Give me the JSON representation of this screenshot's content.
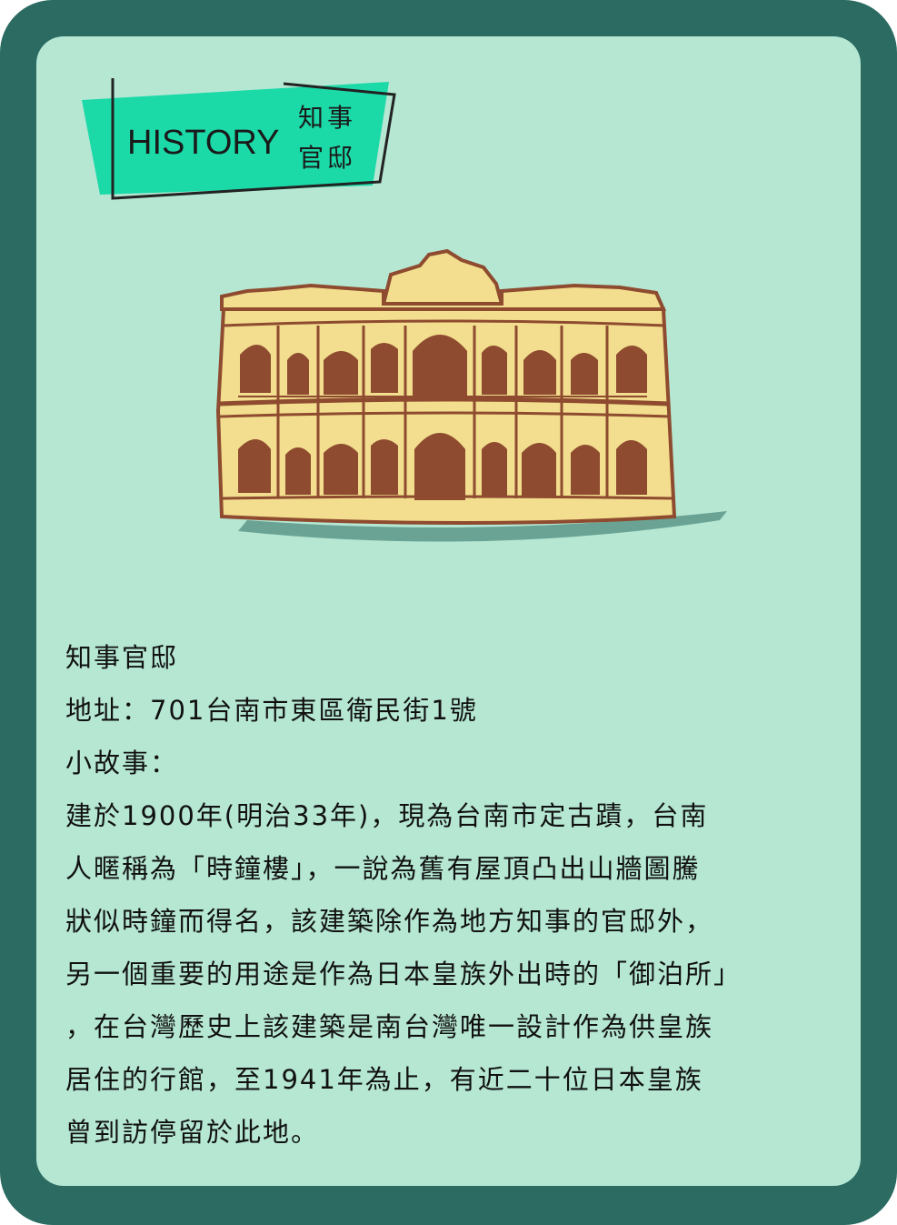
{
  "tag": {
    "english": "HISTORY",
    "chinese_line1": "知事",
    "chinese_line2": "官邸"
  },
  "illustration": {
    "icon": "colonial-building-illustration",
    "colors": {
      "facade": "#f2de8e",
      "arches": "#8e4b2f",
      "outline": "#8e4b2f",
      "shadow": "#2b6b61"
    }
  },
  "info": {
    "name": "知事官邸",
    "address": "地址：701台南市東區衛民街1號",
    "story_label": "小故事：",
    "story_lines": [
      "建於1900年(明治33年)，現為台南市定古蹟，台南",
      "人暱稱為「時鐘樓」，一說為舊有屋頂凸出山牆圖騰",
      "狀似時鐘而得名，該建築除作為地方知事的官邸外，",
      "另一個重要的用途是作為日本皇族外出時的「御泊所」",
      "，在台灣歷史上該建築是南台灣唯一設計作為供皇族",
      "居住的行館，至1941年為止，有近二十位日本皇族",
      "曾到訪停留於此地。"
    ]
  },
  "colors": {
    "frame": "#2b6b61",
    "card": "#b5e7d3",
    "tag_fill": "#1cd9a8",
    "text": "#111111"
  }
}
